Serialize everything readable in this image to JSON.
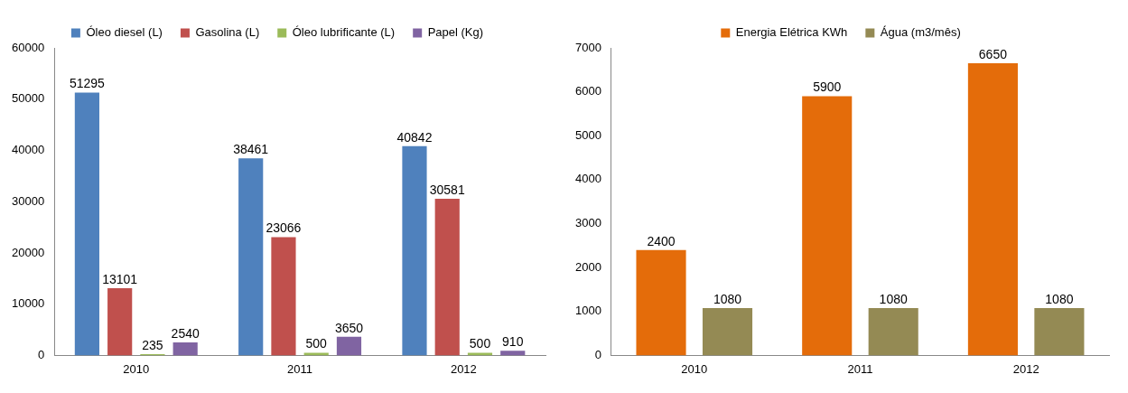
{
  "chart_data": [
    {
      "type": "bar",
      "categories": [
        "2010",
        "2011",
        "2012"
      ],
      "series": [
        {
          "name": "Óleo diesel (L)",
          "color": "#4f81bd",
          "values": [
            51295,
            38461,
            40842
          ]
        },
        {
          "name": "Gasolina (L)",
          "color": "#c0504d",
          "values": [
            13101,
            23066,
            30581
          ]
        },
        {
          "name": "Óleo lubrificante (L)",
          "color": "#9bbb59",
          "values": [
            235,
            500,
            500
          ]
        },
        {
          "name": "Papel (Kg)",
          "color": "#8064a2",
          "values": [
            2540,
            3650,
            910
          ]
        }
      ],
      "ylim": [
        0,
        60000
      ],
      "yticks": [
        0,
        10000,
        20000,
        30000,
        40000,
        50000,
        60000
      ],
      "grid": false,
      "legend": "top",
      "data_labels": true
    },
    {
      "type": "bar",
      "categories": [
        "2010",
        "2011",
        "2012"
      ],
      "series": [
        {
          "name": "Energia Elétrica KWh",
          "color": "#e46c0a",
          "values": [
            2400,
            5900,
            6650
          ]
        },
        {
          "name": "Água (m3/mês)",
          "color": "#948a54",
          "values": [
            1080,
            1080,
            1080
          ]
        }
      ],
      "ylim": [
        0,
        7000
      ],
      "yticks": [
        0,
        1000,
        2000,
        3000,
        4000,
        5000,
        6000,
        7000
      ],
      "grid": false,
      "legend": "top",
      "data_labels": true
    }
  ]
}
